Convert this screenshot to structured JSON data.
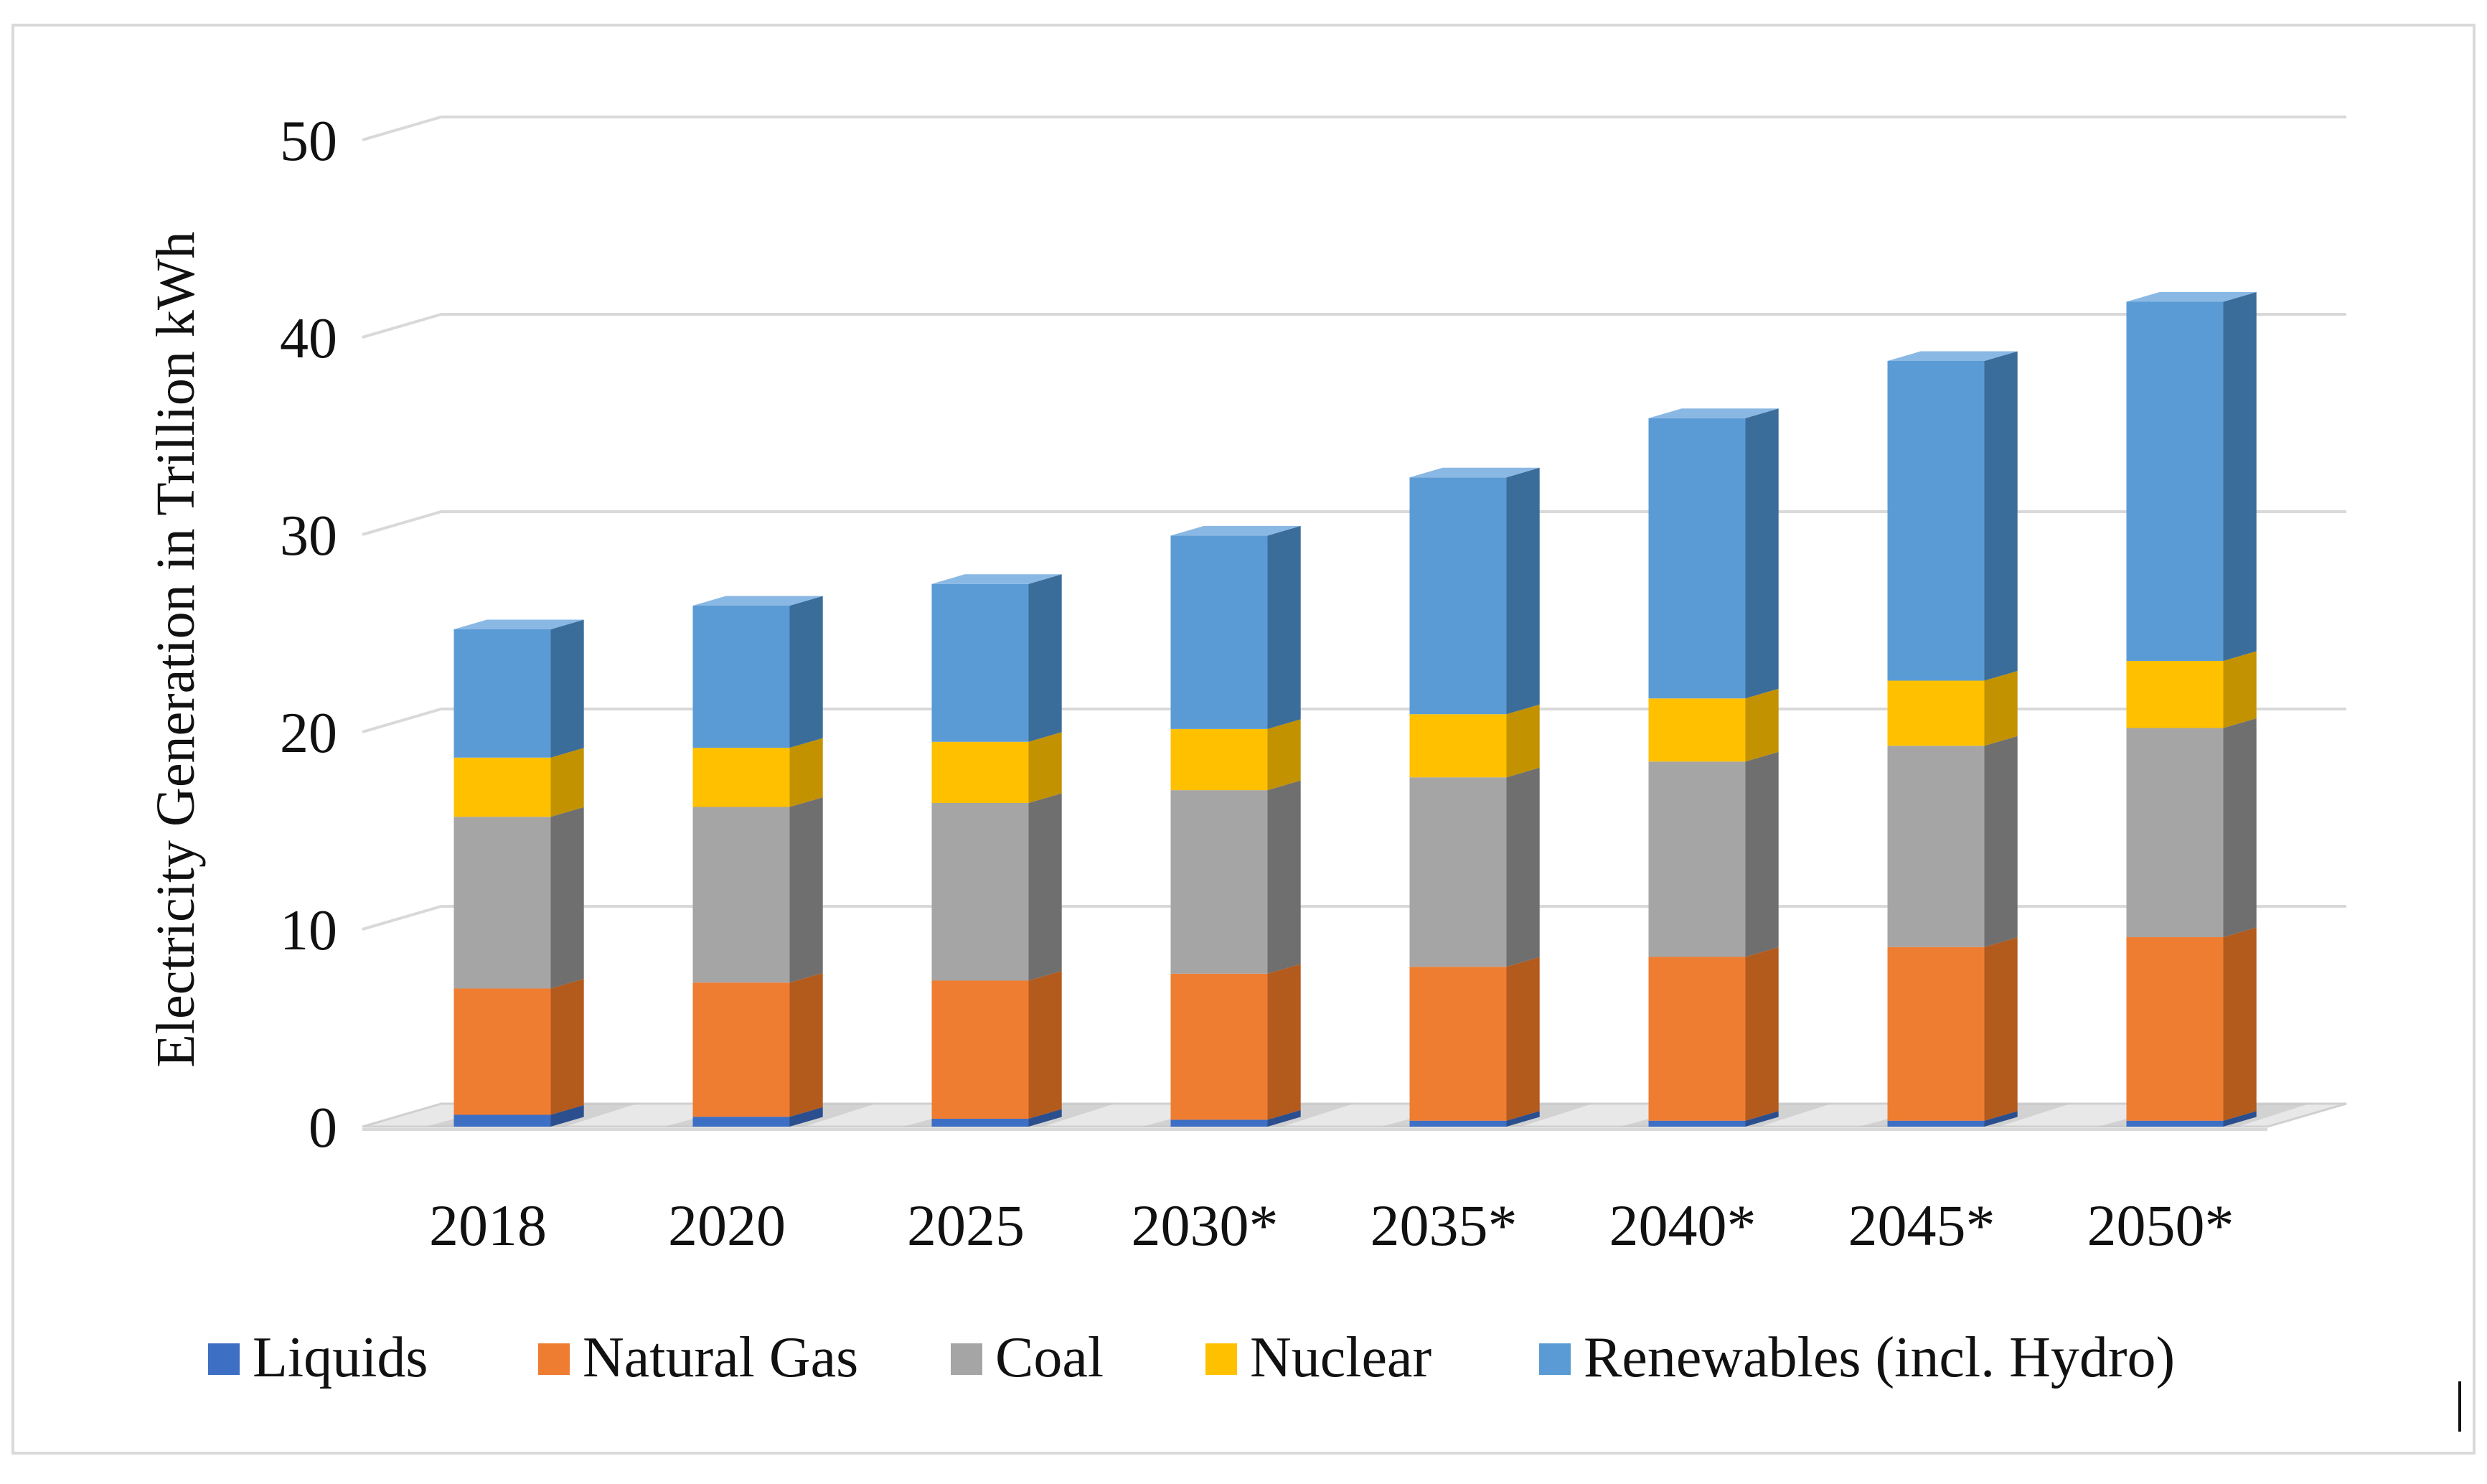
{
  "chart_data": {
    "type": "bar",
    "stacked": true,
    "three_d": true,
    "title": "",
    "xlabel": "",
    "ylabel": "Electricity Generation in Trillion kWh",
    "ylim": [
      0,
      50
    ],
    "yticks": [
      0,
      10,
      20,
      30,
      40,
      50
    ],
    "grid": true,
    "legend_position": "bottom",
    "categories": [
      "2018",
      "2020",
      "2025",
      "2030*",
      "2035*",
      "2040*",
      "2045*",
      "2050*"
    ],
    "series": [
      {
        "name": "Liquids",
        "color": "#3d6fc4",
        "side_color": "#2b4f8e",
        "top_color": "#5a86d1",
        "values": [
          0.6,
          0.5,
          0.4,
          0.35,
          0.3,
          0.3,
          0.3,
          0.3
        ]
      },
      {
        "name": "Natural Gas",
        "color": "#ef7d31",
        "side_color": "#b35a1d",
        "top_color": "#f4a067",
        "values": [
          6.4,
          6.8,
          7.0,
          7.4,
          7.8,
          8.3,
          8.8,
          9.3
        ]
      },
      {
        "name": "Coal",
        "color": "#a5a5a5",
        "side_color": "#6f6f6f",
        "top_color": "#c4c4c4",
        "values": [
          8.7,
          8.9,
          9.0,
          9.3,
          9.6,
          9.9,
          10.2,
          10.6
        ]
      },
      {
        "name": "Nuclear",
        "color": "#ffc000",
        "side_color": "#c29200",
        "top_color": "#ffd24d",
        "values": [
          3.0,
          3.0,
          3.1,
          3.1,
          3.2,
          3.2,
          3.3,
          3.4
        ]
      },
      {
        "name": "Renewables (incl. Hydro)",
        "color": "#5b9bd5",
        "side_color": "#3b6d9a",
        "top_color": "#8ab8e4",
        "values": [
          6.5,
          7.2,
          8.0,
          9.8,
          12.0,
          14.2,
          16.2,
          18.2
        ]
      }
    ]
  }
}
